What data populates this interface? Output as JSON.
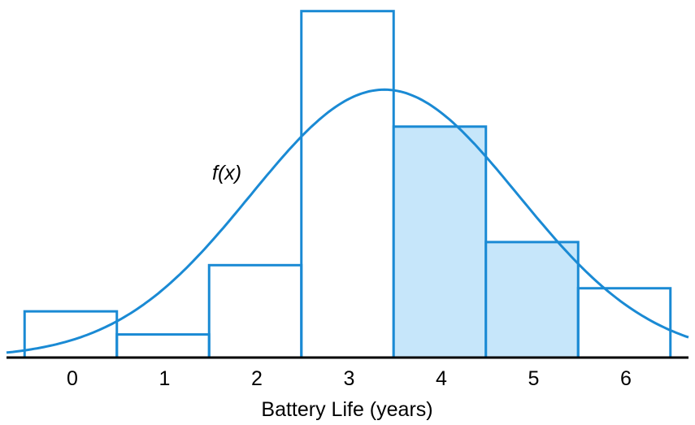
{
  "chart_data": {
    "type": "bar",
    "categories": [
      "0",
      "1",
      "2",
      "3",
      "4",
      "5",
      "6"
    ],
    "x": [
      0,
      1,
      2,
      3,
      4,
      5,
      6
    ],
    "values": [
      0.1,
      0.05,
      0.2,
      0.75,
      0.5,
      0.25,
      0.15
    ],
    "shaded_categories": [
      "4",
      "5"
    ],
    "xlabel": "Battery Life (years)",
    "curve_label": "f(x)",
    "curve": {
      "mean": 3.4,
      "sd": 1.45,
      "peak": 0.58
    },
    "ylim": [
      0,
      0.76
    ],
    "grid": false,
    "legend": "none"
  },
  "colors": {
    "stroke": "#1a8ad4",
    "shade": "#c6e6fa",
    "axis": "#000000",
    "text": "#000000"
  }
}
